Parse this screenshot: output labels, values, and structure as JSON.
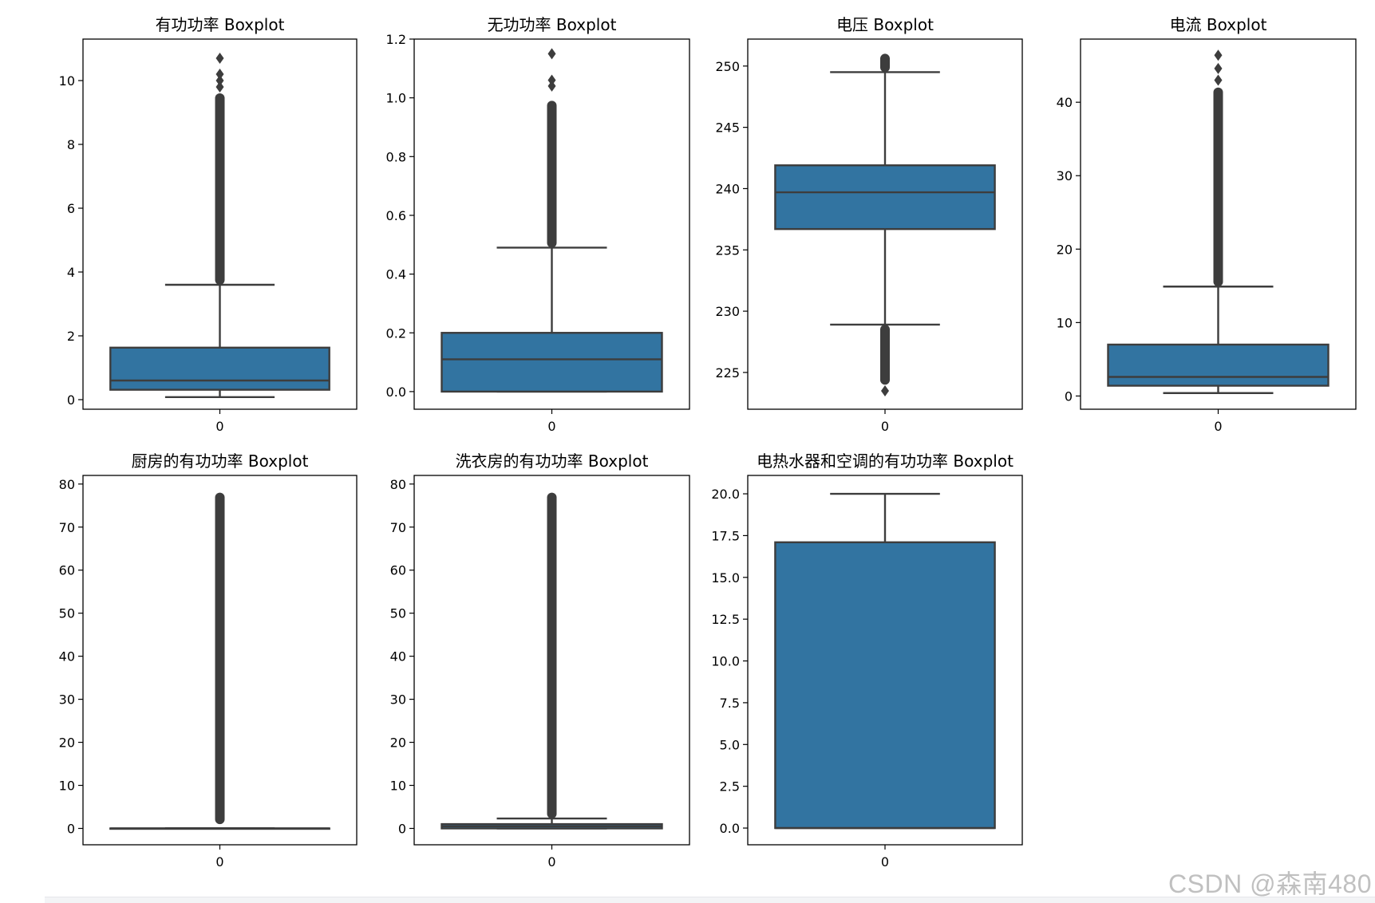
{
  "figure": {
    "style": {
      "box_color": "#3274a1",
      "edge_color": "#3d3d3d",
      "flier_color": "#3d3d3d",
      "frame_color": "#000000"
    }
  },
  "watermark": "CSDN @森南480",
  "chart_data": [
    {
      "type": "box",
      "title": "有功功率 Boxplot",
      "category": "0",
      "ylim": [
        -0.3,
        11.3
      ],
      "yticks": [
        0,
        2,
        4,
        6,
        8,
        10
      ],
      "ytick_labels": [
        "0",
        "2",
        "4",
        "6",
        "8",
        "10"
      ],
      "whisker_low": 0.08,
      "q1": 0.31,
      "median": 0.6,
      "q3": 1.63,
      "whisker_high": 3.6,
      "outliers": {
        "dense_range": [
          3.6,
          9.6
        ],
        "isolated": [
          9.8,
          10.0,
          10.2,
          10.7
        ]
      }
    },
    {
      "type": "box",
      "title": "无功功率 Boxplot",
      "category": "0",
      "ylim": [
        -0.06,
        1.2
      ],
      "yticks": [
        0.0,
        0.2,
        0.4,
        0.6,
        0.8,
        1.0,
        1.2
      ],
      "ytick_labels": [
        "0.0",
        "0.2",
        "0.4",
        "0.6",
        "0.8",
        "1.0",
        "1.2"
      ],
      "whisker_low": 0.0,
      "q1": 0.0,
      "median": 0.11,
      "q3": 0.2,
      "whisker_high": 0.49,
      "outliers": {
        "dense_range": [
          0.49,
          0.99
        ],
        "isolated": [
          1.04,
          1.06,
          1.15
        ]
      }
    },
    {
      "type": "box",
      "title": "电压 Boxplot",
      "category": "0",
      "ylim": [
        222.0,
        252.2
      ],
      "yticks": [
        225,
        230,
        235,
        240,
        245,
        250
      ],
      "ytick_labels": [
        "225",
        "230",
        "235",
        "240",
        "245",
        "250"
      ],
      "whisker_low": 228.9,
      "q1": 236.7,
      "median": 239.7,
      "q3": 241.9,
      "whisker_high": 249.5,
      "outliers": {
        "dense_range": [
          224.0,
          228.9
        ],
        "dense_range_high": [
          249.5,
          251.0
        ],
        "isolated": [
          223.5
        ]
      }
    },
    {
      "type": "box",
      "title": "电流 Boxplot",
      "category": "0",
      "ylim": [
        -1.8,
        48.6
      ],
      "yticks": [
        0,
        10,
        20,
        30,
        40
      ],
      "ytick_labels": [
        "0",
        "10",
        "20",
        "30",
        "40"
      ],
      "whisker_low": 0.4,
      "q1": 1.4,
      "median": 2.6,
      "q3": 7.0,
      "whisker_high": 14.9,
      "outliers": {
        "dense_range": [
          14.9,
          42.0
        ],
        "isolated": [
          43.0,
          44.6,
          46.4
        ]
      }
    },
    {
      "type": "box",
      "title": "厨房的有功功率 Boxplot",
      "category": "0",
      "ylim": [
        -3.8,
        82.0
      ],
      "yticks": [
        0,
        10,
        20,
        30,
        40,
        50,
        60,
        70,
        80
      ],
      "ytick_labels": [
        "0",
        "10",
        "20",
        "30",
        "40",
        "50",
        "60",
        "70",
        "80"
      ],
      "whisker_low": 0.0,
      "q1": 0.0,
      "median": 0.0,
      "q3": 0.0,
      "whisker_high": 0.0,
      "outliers": {
        "dense_range": [
          1.0,
          78.0
        ],
        "isolated": []
      }
    },
    {
      "type": "box",
      "title": "洗衣房的有功功率 Boxplot",
      "category": "0",
      "ylim": [
        -3.8,
        82.0
      ],
      "yticks": [
        0,
        10,
        20,
        30,
        40,
        50,
        60,
        70,
        80
      ],
      "ytick_labels": [
        "0",
        "10",
        "20",
        "30",
        "40",
        "50",
        "60",
        "70",
        "80"
      ],
      "whisker_low": 0.0,
      "q1": 0.0,
      "median": 0.5,
      "q3": 1.0,
      "whisker_high": 2.3,
      "outliers": {
        "dense_range": [
          2.3,
          78.0
        ],
        "isolated": []
      }
    },
    {
      "type": "box",
      "title": "电热水器和空调的有功功率 Boxplot",
      "category": "0",
      "ylim": [
        -1.0,
        21.1
      ],
      "yticks": [
        0.0,
        2.5,
        5.0,
        7.5,
        10.0,
        12.5,
        15.0,
        17.5,
        20.0
      ],
      "ytick_labels": [
        "0.0",
        "2.5",
        "5.0",
        "7.5",
        "10.0",
        "12.5",
        "15.0",
        "17.5",
        "20.0"
      ],
      "whisker_low": 0.0,
      "q1": 0.0,
      "median": 0.0,
      "q3": 17.1,
      "whisker_high": 20.0,
      "outliers": {
        "dense_range": null,
        "isolated": []
      }
    }
  ]
}
